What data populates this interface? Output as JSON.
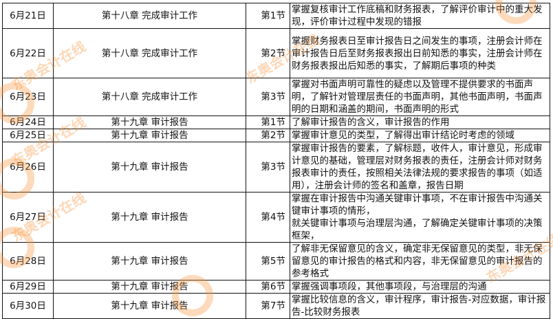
{
  "rows": [
    {
      "date": "6月21日",
      "chapter": "第十八章 完成审计工作",
      "section": "第1节",
      "desc": "掌握复核审计工作底稿和财务报表，了解评价审计中的重大发现，评价审计过程中发现的错报"
    },
    {
      "date": "6月22日",
      "chapter": "第十八章 完成审计工作",
      "section": "第2节",
      "desc": "掌握财务报表日至审计报告日之间发生的事项，注册会计师在审计报告日后至财务报表报出日前知悉的事实，注册会计师在财务报表报出后知悉的事实，了解期后事项的种类"
    },
    {
      "date": "6月23日",
      "chapter": "第十八章 完成审计工作",
      "section": "第3节",
      "desc": "掌握对书面声明可靠性的疑虑以及管理不提供要求的书面声明，了解针对管理层责任的书面声明，其他书面声明，书面声明的日期和涵盖的期间，书面声明的形式"
    },
    {
      "date": "6月24日",
      "chapter": "第十九章 审计报告",
      "section": "第1节",
      "desc": "了解审计报告的含义，审计报告的作用"
    },
    {
      "date": "6月25日",
      "chapter": "第十九章 审计报告",
      "section": "第2节",
      "desc": "掌握审计意见的类型，了解得出审计结论时考虑的领域"
    },
    {
      "date": "6月26日",
      "chapter": "第十九章 审计报告",
      "section": "第3节",
      "desc": "掌握审计报告的要素，了解标题，收件人，审计意见，形成审计意见的基础，管理层对财务报表的责任，注册会计师对财务报表审计的责任，按照相关法律法规的要求报告的事项（如适用），注册会计师的签名和盖章，报告日期"
    },
    {
      "date": "6月27日",
      "chapter": "第十九章 审计报告",
      "section": "第4节",
      "desc": "掌握在审计报告中沟通关键审计事项，不在审计报告中沟通关键审计事项的情形，\n就关键审计事项与治理层沟通，了解确定关键审计事项的决策框架，"
    },
    {
      "date": "6月28日",
      "chapter": "第十九章 审计报告",
      "section": "第5节",
      "desc": "了解非无保留意见的含义，确定非无保留意见的类型，非无保留意见的审计报告的格式和内容，非无保留意见的审计报告的参考格式"
    },
    {
      "date": "6月29日",
      "chapter": "第十九章 审计报告",
      "section": "第6节",
      "desc": "掌握强调事项段，其他事项段，与治理层的沟通"
    },
    {
      "date": "6月30日",
      "chapter": "第十九章 审计报告",
      "section": "第7节",
      "desc": "掌握比较信息的含义，审计程序，审计报告-对应数据，审计报告-比较财务报表"
    }
  ],
  "watermark": {
    "text": "东奥会计在线",
    "url": "www.dongao.com",
    "color": "#f8963c"
  }
}
